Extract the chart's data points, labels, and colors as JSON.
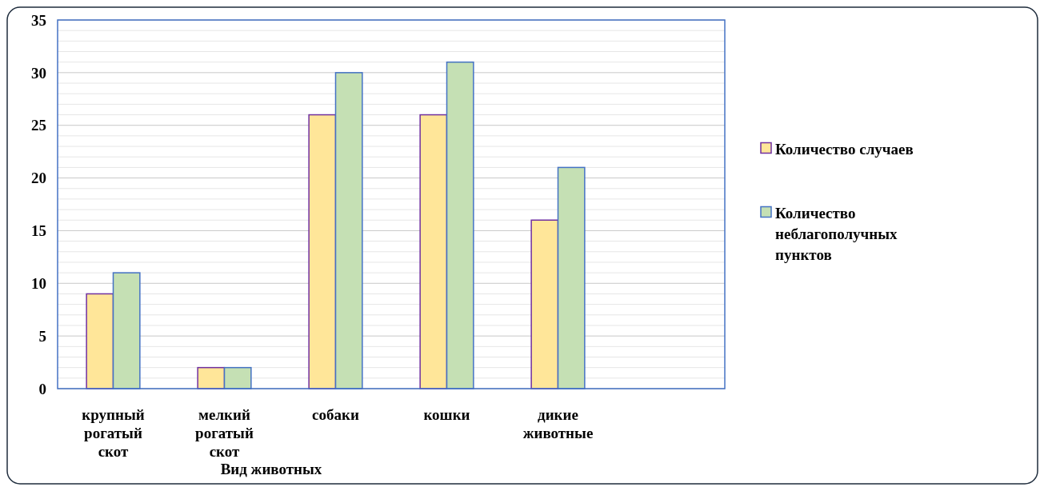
{
  "chart_data": {
    "type": "bar",
    "xlabel": "Вид животных",
    "categories": [
      "крупный рогатый скот",
      "мелкий рогатый скот",
      "собаки",
      "кошки",
      "дикие животные",
      null
    ],
    "series": [
      {
        "name": "Количество случаев",
        "color": "#ffe699",
        "values": [
          9,
          2,
          26,
          26,
          16,
          null
        ]
      },
      {
        "name": "Количество неблагополучных пунктов",
        "color": "#c5e0b4",
        "values": [
          11,
          2,
          30,
          31,
          21,
          null
        ]
      }
    ],
    "ylim": [
      0,
      35
    ],
    "yticks": [
      0,
      {
        "value": 1,
        "label": null
      },
      {
        "value": 2,
        "label": null
      },
      {
        "value": 3,
        "label": null
      },
      {
        "value": 4,
        "label": null
      },
      5,
      {
        "value": 6,
        "label": null
      },
      {
        "value": 7,
        "label": null
      },
      {
        "value": 8,
        "label": null
      },
      {
        "value": 9,
        "label": null
      },
      10,
      {
        "value": 11,
        "label": null
      },
      {
        "value": 12,
        "label": null
      },
      {
        "value": 13,
        "label": null
      },
      {
        "value": 14,
        "label": null
      },
      15,
      {
        "value": 16,
        "label": null
      },
      {
        "value": 17,
        "label": null
      },
      {
        "value": 18,
        "label": null
      },
      {
        "value": 19,
        "label": null
      },
      20,
      {
        "value": 21,
        "label": null
      },
      {
        "value": 22,
        "label": null
      },
      {
        "value": 23,
        "label": null
      },
      {
        "value": 24,
        "label": null
      },
      25,
      {
        "value": 26,
        "label": null
      },
      {
        "value": 27,
        "label": null
      },
      {
        "value": 28,
        "label": null
      },
      {
        "value": 29,
        "label": null
      },
      30,
      {
        "value": 31,
        "label": null
      },
      {
        "value": 32,
        "label": null
      },
      {
        "value": 33,
        "label": null
      },
      {
        "value": 34,
        "label": null
      },
      35
    ],
    "grid": "y",
    "legend": "right"
  }
}
